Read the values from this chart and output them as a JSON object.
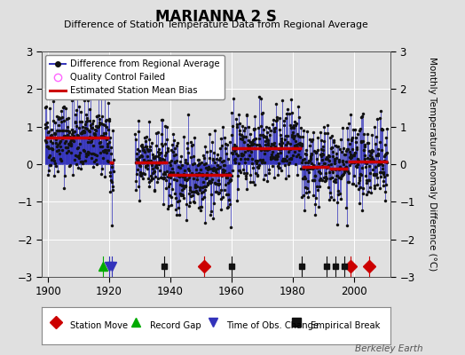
{
  "title": "MARIANNA 2 S",
  "subtitle": "Difference of Station Temperature Data from Regional Average",
  "ylabel": "Monthly Temperature Anomaly Difference (°C)",
  "xlim": [
    1898,
    2012
  ],
  "ylim": [
    -3,
    3
  ],
  "yticks": [
    -3,
    -2,
    -1,
    0,
    1,
    2,
    3
  ],
  "xticks": [
    1900,
    1920,
    1940,
    1960,
    1980,
    2000
  ],
  "bg_color": "#e0e0e0",
  "line_color": "#3333bb",
  "marker_color": "#111111",
  "bias_color": "#cc0000",
  "bias_linewidth": 2.5,
  "data_linewidth": 0.7,
  "marker_size": 2.5,
  "seed": 42,
  "station_moves": [
    1951,
    1999,
    2005
  ],
  "record_gaps": [
    1918
  ],
  "obs_changes": [
    1920,
    1921
  ],
  "empirical_breaks": [
    1938,
    1960,
    1983,
    1991,
    1994,
    1997
  ],
  "segments": [
    {
      "start": 1899.0,
      "end": 1920.0,
      "bias": 0.72
    },
    {
      "start": 1920.0,
      "end": 1939.0,
      "bias": 0.05
    },
    {
      "start": 1939.0,
      "end": 1960.0,
      "bias": -0.28
    },
    {
      "start": 1960.0,
      "end": 1983.0,
      "bias": 0.42
    },
    {
      "start": 1983.0,
      "end": 1992.0,
      "bias": -0.08
    },
    {
      "start": 1992.0,
      "end": 1998.0,
      "bias": -0.12
    },
    {
      "start": 1998.0,
      "end": 2011.0,
      "bias": 0.08
    }
  ],
  "gap_start": 1921.5,
  "gap_end": 1928.5,
  "noise_std": 0.52,
  "bottom_legend_items": [
    {
      "marker": "D",
      "color": "#cc0000",
      "label": "Station Move"
    },
    {
      "marker": "^",
      "color": "#00aa00",
      "label": "Record Gap"
    },
    {
      "marker": "v",
      "color": "#3333bb",
      "label": "Time of Obs. Change"
    },
    {
      "marker": "s",
      "color": "#111111",
      "label": "Empirical Break"
    }
  ]
}
